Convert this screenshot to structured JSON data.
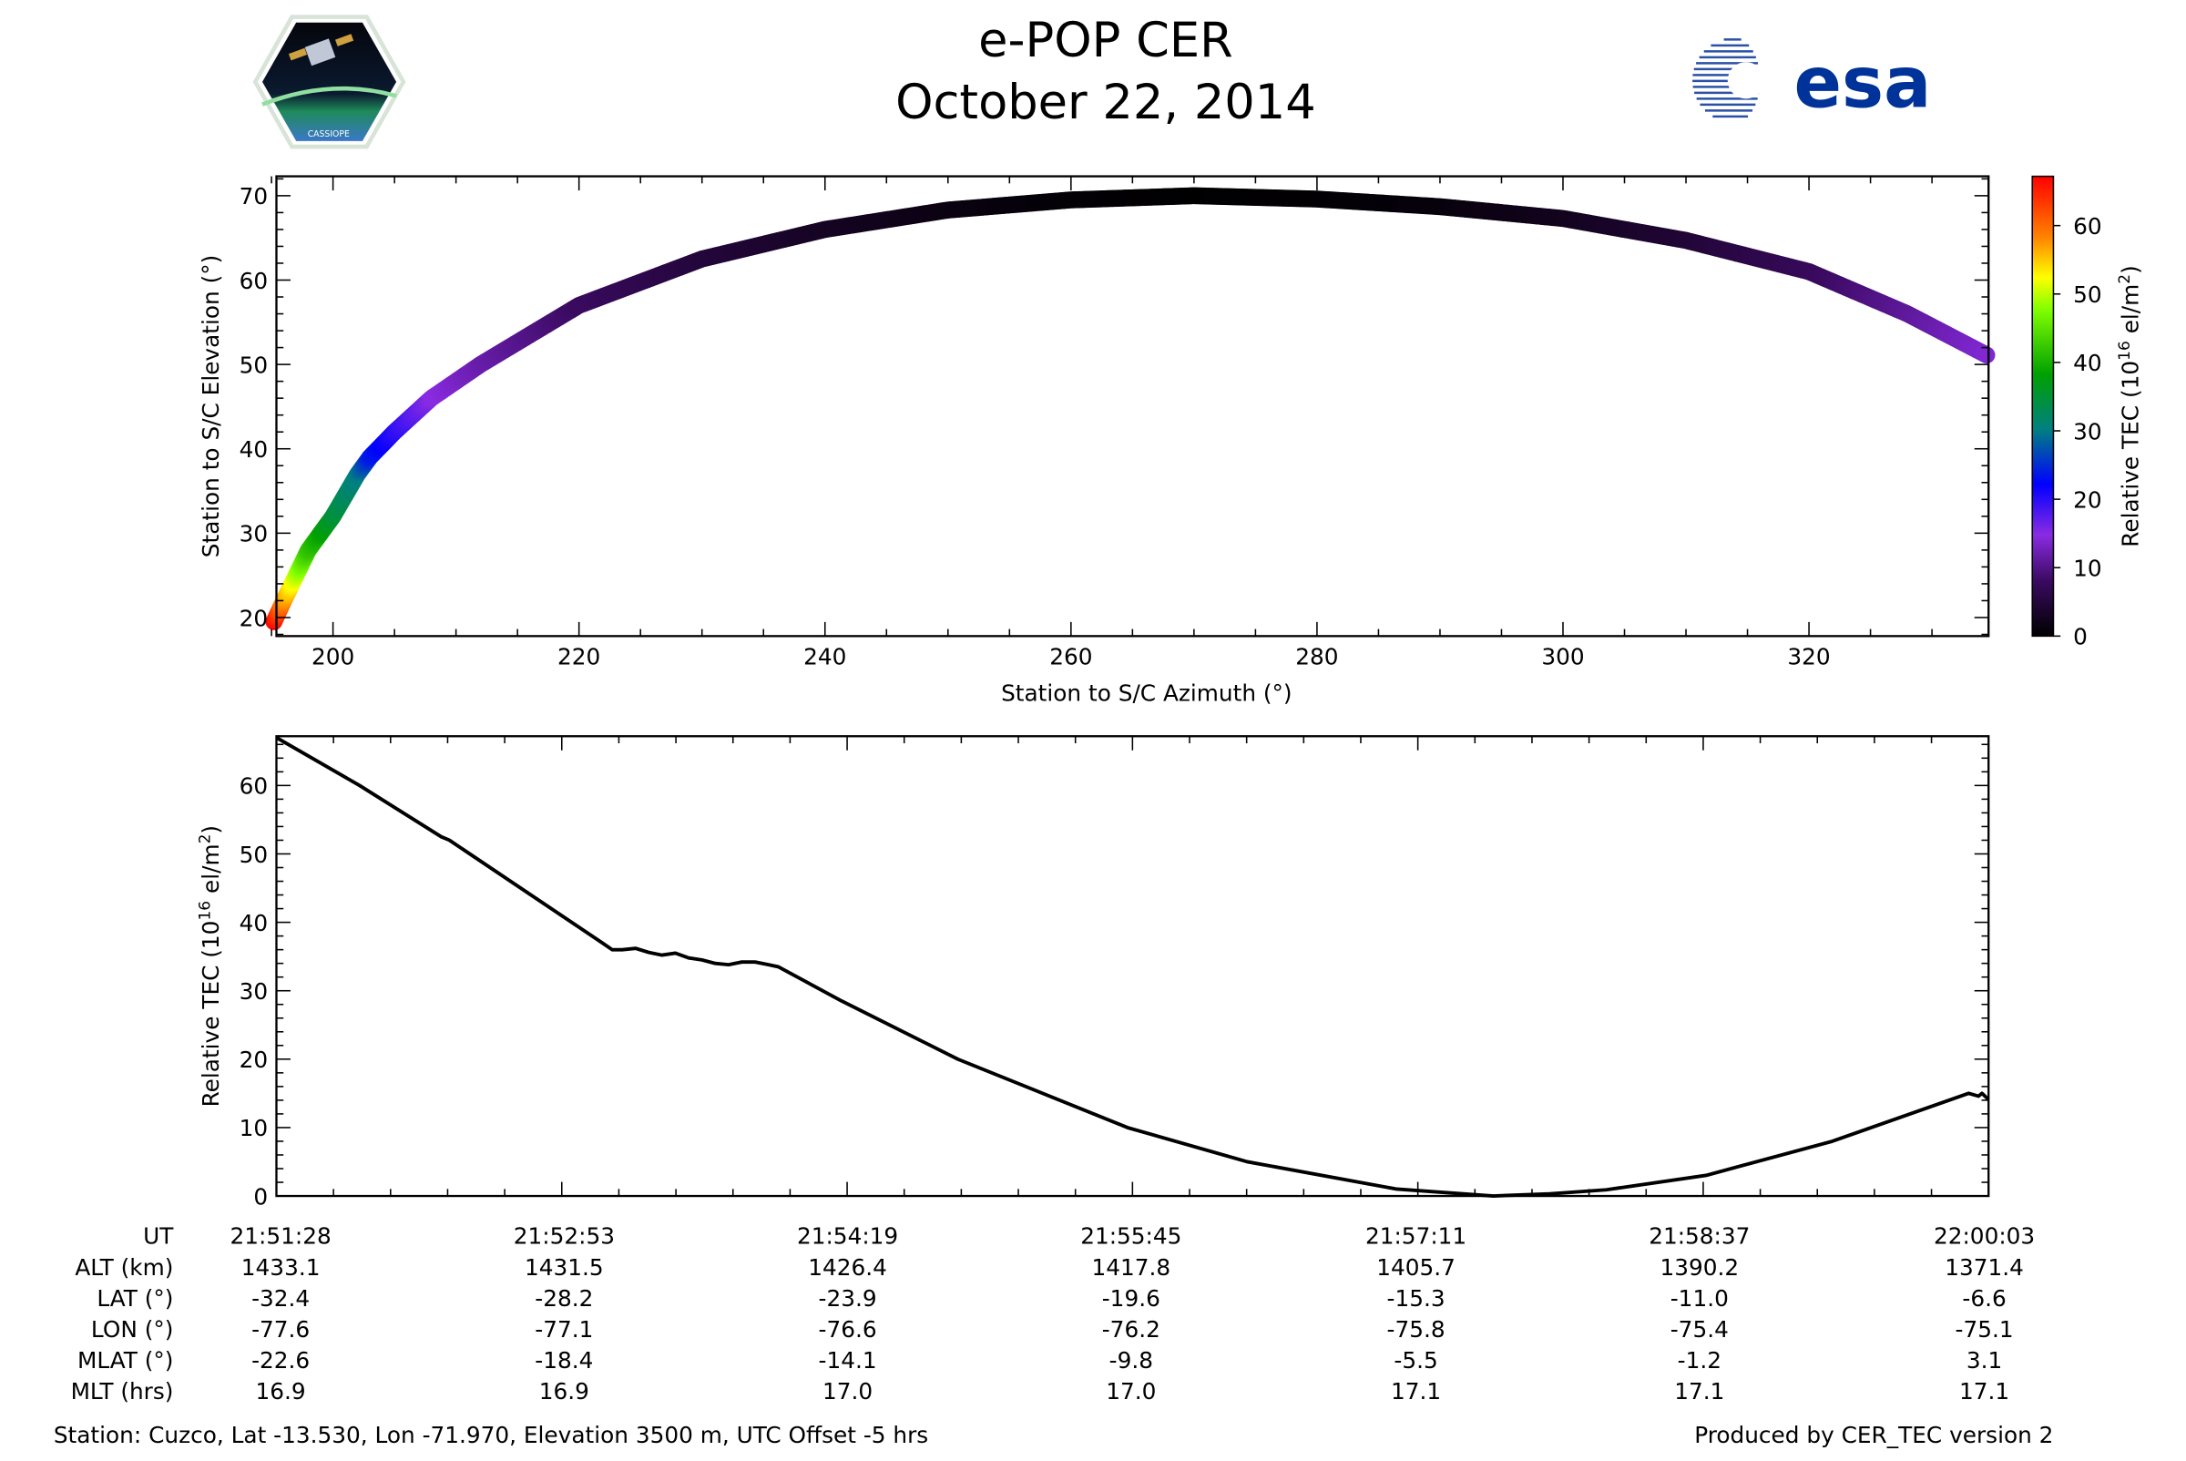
{
  "header": {
    "title": "e-POP CER",
    "date": "October 22, 2014",
    "left_logo_text": "CASSIOPE",
    "right_logo_text": "esa"
  },
  "colors": {
    "esa_blue": "#003399",
    "axis": "#000000",
    "line": "#000000"
  },
  "chart_data": [
    {
      "type": "scatter",
      "xlabel": "Station to S/C Azimuth (°)",
      "ylabel": "Station to S/C Elevation (°)",
      "xlim": [
        195.4,
        334.6
      ],
      "ylim": [
        17.8,
        72.3
      ],
      "xticks": [
        200,
        220,
        240,
        260,
        280,
        300,
        320
      ],
      "yticks": [
        20,
        30,
        40,
        50,
        60,
        70
      ],
      "colorbar": {
        "label": "Relative TEC (10",
        "label_sup": "16",
        "label_end": " el/m",
        "label_sup2": "2",
        "label_close": ")",
        "ticks": [
          0,
          10,
          20,
          30,
          40,
          50,
          60
        ],
        "lim": [
          0,
          67.2
        ]
      },
      "points": [
        {
          "az": 195.2,
          "el": 19.5,
          "tec": 67
        },
        {
          "az": 196,
          "el": 22,
          "tec": 58
        },
        {
          "az": 197,
          "el": 25,
          "tec": 50
        },
        {
          "az": 198,
          "el": 28,
          "tec": 42
        },
        {
          "az": 200,
          "el": 32,
          "tec": 35
        },
        {
          "az": 202,
          "el": 37,
          "tec": 30
        },
        {
          "az": 203,
          "el": 39,
          "tec": 24
        },
        {
          "az": 205,
          "el": 42,
          "tec": 20
        },
        {
          "az": 208,
          "el": 46,
          "tec": 15
        },
        {
          "az": 212,
          "el": 50,
          "tec": 12
        },
        {
          "az": 220,
          "el": 57,
          "tec": 8
        },
        {
          "az": 230,
          "el": 62.5,
          "tec": 5
        },
        {
          "az": 240,
          "el": 66,
          "tec": 3
        },
        {
          "az": 250,
          "el": 68.3,
          "tec": 1.5
        },
        {
          "az": 260,
          "el": 69.5,
          "tec": 0.5
        },
        {
          "az": 270,
          "el": 70,
          "tec": 0.1
        },
        {
          "az": 280,
          "el": 69.6,
          "tec": 0.3
        },
        {
          "az": 290,
          "el": 68.7,
          "tec": 1
        },
        {
          "az": 300,
          "el": 67.3,
          "tec": 2.5
        },
        {
          "az": 310,
          "el": 64.7,
          "tec": 4.5
        },
        {
          "az": 320,
          "el": 61,
          "tec": 7.5
        },
        {
          "az": 328,
          "el": 56,
          "tec": 11
        },
        {
          "az": 334.6,
          "el": 51,
          "tec": 14
        }
      ]
    },
    {
      "type": "line",
      "ylabel": "Relative TEC (10",
      "ylabel_sup": "16",
      "ylabel_end": " el/m",
      "ylabel_sup2": "2",
      "ylabel_close": ")",
      "xlim_seconds": [
        0,
        515
      ],
      "ylim": [
        0,
        67.2
      ],
      "yticks": [
        0,
        10,
        20,
        30,
        40,
        50,
        60
      ],
      "series": [
        {
          "name": "Relative TEC",
          "t": [
            0,
            25,
            49.6,
            52,
            75,
            98,
            101,
            104,
            108,
            112,
            116,
            120,
            124,
            128,
            132,
            136,
            140,
            144,
            148,
            151,
            170,
            205,
            256,
            292,
            337,
            366,
            383,
            400,
            430,
            468,
            509,
            512,
            513,
            515
          ],
          "values": [
            67,
            60,
            52.5,
            52,
            44.5,
            37,
            36,
            36,
            36.2,
            35.6,
            35.2,
            35.5,
            34.8,
            34.5,
            34,
            33.8,
            34.2,
            34.2,
            33.8,
            33.5,
            28.5,
            20,
            10,
            5,
            1,
            0,
            0.3,
            0.9,
            3,
            8,
            15,
            14.6,
            15,
            14.1
          ]
        }
      ]
    }
  ],
  "table": {
    "row_labels": [
      "UT",
      "ALT (km)",
      "LAT (°)",
      "LON (°)",
      "MLAT (°)",
      "MLT (hrs)"
    ],
    "columns": [
      [
        "21:51:28",
        "1433.1",
        "-32.4",
        "-77.6",
        "-22.6",
        "16.9"
      ],
      [
        "21:52:53",
        "1431.5",
        "-28.2",
        "-77.1",
        "-18.4",
        "16.9"
      ],
      [
        "21:54:19",
        "1426.4",
        "-23.9",
        "-76.6",
        "-14.1",
        "17.0"
      ],
      [
        "21:55:45",
        "1417.8",
        "-19.6",
        "-76.2",
        "-9.8",
        "17.0"
      ],
      [
        "21:57:11",
        "1405.7",
        "-15.3",
        "-75.8",
        "-5.5",
        "17.1"
      ],
      [
        "21:58:37",
        "1390.2",
        "-11.0",
        "-75.4",
        "-1.2",
        "17.1"
      ],
      [
        "22:00:03",
        "1371.4",
        "-6.6",
        "-75.1",
        "3.1",
        "17.1"
      ]
    ]
  },
  "footer": {
    "station": "Station: Cuzco, Lat -13.530, Lon -71.970, Elevation 3500 m, UTC Offset -5 hrs",
    "produced": "Produced by CER_TEC version 2"
  }
}
